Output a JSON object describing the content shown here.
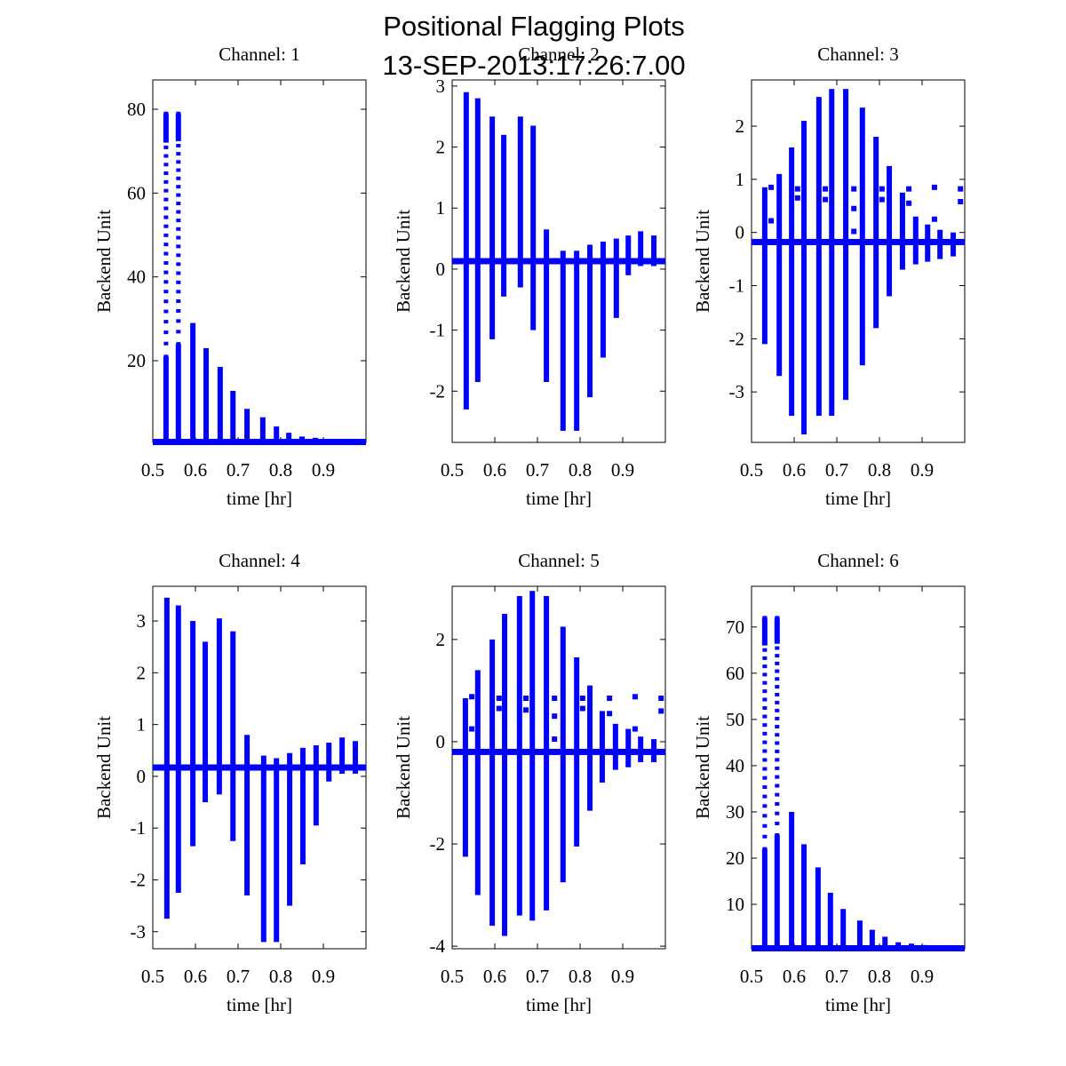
{
  "chart_data": {
    "type": "scatter",
    "title": "Positional Flagging Plots",
    "subtitle": "13-SEP-2013:17:26:7.00",
    "marker_color": "#0000ff",
    "panels": [
      {
        "title": "Channel: 1",
        "xlabel": "time [hr]",
        "ylabel": "Backend Unit",
        "xlim": [
          0.5,
          1.0
        ],
        "ylim": [
          0.5,
          87
        ],
        "xticks": [
          0.5,
          0.6,
          0.7,
          0.8,
          0.9
        ],
        "xtick_labels": [
          "0.5",
          "0.6",
          "0.7",
          "0.8",
          "0.9"
        ],
        "yticks": [
          20,
          40,
          60,
          80
        ],
        "ytick_labels": [
          "20",
          "40",
          "60",
          "80"
        ],
        "baseline": 0.6,
        "columns": [
          {
            "x": 0.531,
            "ymin": 0.6,
            "ymax": 79,
            "sparse_above": 21
          },
          {
            "x": 0.56,
            "ymin": 0.6,
            "ymax": 79,
            "sparse_above": 24
          },
          {
            "x": 0.594,
            "ymin": 0.6,
            "ymax": 29
          },
          {
            "x": 0.625,
            "ymin": 0.6,
            "ymax": 23
          },
          {
            "x": 0.658,
            "ymin": 0.6,
            "ymax": 18.5
          },
          {
            "x": 0.688,
            "ymin": 0.6,
            "ymax": 12.8
          },
          {
            "x": 0.721,
            "ymin": 0.6,
            "ymax": 8.5
          },
          {
            "x": 0.758,
            "ymin": 0.6,
            "ymax": 6.5
          },
          {
            "x": 0.79,
            "ymin": 0.6,
            "ymax": 4.3
          },
          {
            "x": 0.819,
            "ymin": 0.6,
            "ymax": 2.8
          },
          {
            "x": 0.85,
            "ymin": 0.6,
            "ymax": 1.9
          },
          {
            "x": 0.881,
            "ymin": 0.6,
            "ymax": 1.6
          },
          {
            "x": 0.913,
            "ymin": 0.6,
            "ymax": 1.3
          },
          {
            "x": 0.944,
            "ymin": 0.6,
            "ymax": 1.2
          },
          {
            "x": 0.975,
            "ymin": 0.6,
            "ymax": 1.1
          }
        ],
        "outliers": []
      },
      {
        "title": "Channel: 2",
        "xlabel": "time [hr]",
        "ylabel": "Backend Unit",
        "xlim": [
          0.5,
          1.0
        ],
        "ylim": [
          -2.84,
          3.1
        ],
        "xticks": [
          0.5,
          0.6,
          0.7,
          0.8,
          0.9
        ],
        "xtick_labels": [
          "0.5",
          "0.6",
          "0.7",
          "0.8",
          "0.9"
        ],
        "yticks": [
          -2,
          -1,
          0,
          1,
          2,
          3
        ],
        "ytick_labels": [
          "-2",
          "-1",
          "0",
          "1",
          "2",
          "3"
        ],
        "baseline": 0.13,
        "columns": [
          {
            "x": 0.533,
            "ymin": -2.3,
            "ymax": 2.9
          },
          {
            "x": 0.56,
            "ymin": -1.85,
            "ymax": 2.8
          },
          {
            "x": 0.594,
            "ymin": -1.15,
            "ymax": 2.5
          },
          {
            "x": 0.621,
            "ymin": -0.45,
            "ymax": 2.2
          },
          {
            "x": 0.66,
            "ymin": -0.3,
            "ymax": 2.5
          },
          {
            "x": 0.69,
            "ymin": -1.0,
            "ymax": 2.35
          },
          {
            "x": 0.721,
            "ymin": -1.85,
            "ymax": 0.65
          },
          {
            "x": 0.76,
            "ymin": -2.65,
            "ymax": 0.3
          },
          {
            "x": 0.792,
            "ymin": -2.65,
            "ymax": 0.3
          },
          {
            "x": 0.823,
            "ymin": -2.1,
            "ymax": 0.4
          },
          {
            "x": 0.854,
            "ymin": -1.45,
            "ymax": 0.45
          },
          {
            "x": 0.885,
            "ymin": -0.8,
            "ymax": 0.5
          },
          {
            "x": 0.913,
            "ymin": -0.1,
            "ymax": 0.55
          },
          {
            "x": 0.942,
            "ymin": 0.05,
            "ymax": 0.62
          },
          {
            "x": 0.973,
            "ymin": 0.05,
            "ymax": 0.55
          }
        ],
        "outliers": []
      },
      {
        "title": "Channel: 3",
        "xlabel": "time [hr]",
        "ylabel": "Backend Unit",
        "xlim": [
          0.5,
          1.0
        ],
        "ylim": [
          -3.95,
          2.87
        ],
        "xticks": [
          0.5,
          0.6,
          0.7,
          0.8,
          0.9
        ],
        "xtick_labels": [
          "0.5",
          "0.6",
          "0.7",
          "0.8",
          "0.9"
        ],
        "yticks": [
          -3,
          -2,
          -1,
          0,
          1,
          2
        ],
        "ytick_labels": [
          "-3",
          "-2",
          "-1",
          "0",
          "1",
          "2"
        ],
        "baseline": -0.18,
        "columns": [
          {
            "x": 0.531,
            "ymin": -2.1,
            "ymax": 0.85
          },
          {
            "x": 0.565,
            "ymin": -2.7,
            "ymax": 1.1
          },
          {
            "x": 0.594,
            "ymin": -3.45,
            "ymax": 1.6
          },
          {
            "x": 0.623,
            "ymin": -3.8,
            "ymax": 2.1
          },
          {
            "x": 0.658,
            "ymin": -3.45,
            "ymax": 2.55
          },
          {
            "x": 0.688,
            "ymin": -3.45,
            "ymax": 2.7
          },
          {
            "x": 0.721,
            "ymin": -3.15,
            "ymax": 2.7
          },
          {
            "x": 0.76,
            "ymin": -2.5,
            "ymax": 2.35
          },
          {
            "x": 0.792,
            "ymin": -1.8,
            "ymax": 1.8
          },
          {
            "x": 0.823,
            "ymin": -1.2,
            "ymax": 1.25
          },
          {
            "x": 0.854,
            "ymin": -0.7,
            "ymax": 0.75
          },
          {
            "x": 0.885,
            "ymin": -0.6,
            "ymax": 0.3
          },
          {
            "x": 0.913,
            "ymin": -0.55,
            "ymax": 0.15
          },
          {
            "x": 0.942,
            "ymin": -0.5,
            "ymax": 0.05
          },
          {
            "x": 0.973,
            "ymin": -0.45,
            "ymax": 0.0
          }
        ],
        "outliers": [
          {
            "x": 0.546,
            "y": 0.85
          },
          {
            "x": 0.546,
            "y": 0.22
          },
          {
            "x": 0.608,
            "y": 0.82
          },
          {
            "x": 0.608,
            "y": 0.65
          },
          {
            "x": 0.673,
            "y": 0.82
          },
          {
            "x": 0.673,
            "y": 0.62
          },
          {
            "x": 0.74,
            "y": 0.82
          },
          {
            "x": 0.74,
            "y": 0.45
          },
          {
            "x": 0.74,
            "y": 0.02
          },
          {
            "x": 0.806,
            "y": 0.82
          },
          {
            "x": 0.806,
            "y": 0.62
          },
          {
            "x": 0.869,
            "y": 0.82
          },
          {
            "x": 0.869,
            "y": 0.55
          },
          {
            "x": 0.929,
            "y": 0.85
          },
          {
            "x": 0.929,
            "y": 0.25
          },
          {
            "x": 0.99,
            "y": 0.82
          },
          {
            "x": 0.99,
            "y": 0.58
          }
        ]
      },
      {
        "title": "Channel: 4",
        "xlabel": "time [hr]",
        "ylabel": "Backend Unit",
        "xlim": [
          0.5,
          1.0
        ],
        "ylim": [
          -3.33,
          3.67
        ],
        "xticks": [
          0.5,
          0.6,
          0.7,
          0.8,
          0.9
        ],
        "xtick_labels": [
          "0.5",
          "0.6",
          "0.7",
          "0.8",
          "0.9"
        ],
        "yticks": [
          -3,
          -2,
          -1,
          0,
          1,
          2,
          3
        ],
        "ytick_labels": [
          "-3",
          "-2",
          "-1",
          "0",
          "1",
          "2",
          "3"
        ],
        "baseline": 0.17,
        "columns": [
          {
            "x": 0.533,
            "ymin": -2.75,
            "ymax": 3.45
          },
          {
            "x": 0.56,
            "ymin": -2.25,
            "ymax": 3.3
          },
          {
            "x": 0.594,
            "ymin": -1.35,
            "ymax": 3.0
          },
          {
            "x": 0.623,
            "ymin": -0.5,
            "ymax": 2.6
          },
          {
            "x": 0.656,
            "ymin": -0.35,
            "ymax": 3.05
          },
          {
            "x": 0.688,
            "ymin": -1.25,
            "ymax": 2.8
          },
          {
            "x": 0.721,
            "ymin": -2.3,
            "ymax": 0.8
          },
          {
            "x": 0.76,
            "ymin": -3.2,
            "ymax": 0.4
          },
          {
            "x": 0.79,
            "ymin": -3.2,
            "ymax": 0.35
          },
          {
            "x": 0.821,
            "ymin": -2.5,
            "ymax": 0.45
          },
          {
            "x": 0.852,
            "ymin": -1.7,
            "ymax": 0.55
          },
          {
            "x": 0.883,
            "ymin": -0.95,
            "ymax": 0.6
          },
          {
            "x": 0.913,
            "ymin": -0.1,
            "ymax": 0.65
          },
          {
            "x": 0.944,
            "ymin": 0.05,
            "ymax": 0.75
          },
          {
            "x": 0.975,
            "ymin": 0.05,
            "ymax": 0.68
          }
        ],
        "outliers": []
      },
      {
        "title": "Channel: 5",
        "xlabel": "time [hr]",
        "ylabel": "Backend Unit",
        "xlim": [
          0.5,
          1.0
        ],
        "ylim": [
          -4.05,
          3.04
        ],
        "xticks": [
          0.5,
          0.6,
          0.7,
          0.8,
          0.9
        ],
        "xtick_labels": [
          "0.5",
          "0.6",
          "0.7",
          "0.8",
          "0.9"
        ],
        "yticks": [
          -4,
          -2,
          0,
          2
        ],
        "ytick_labels": [
          "-4",
          "-2",
          "0",
          "2"
        ],
        "baseline": -0.2,
        "columns": [
          {
            "x": 0.531,
            "ymin": -2.25,
            "ymax": 0.85
          },
          {
            "x": 0.56,
            "ymin": -3.0,
            "ymax": 1.4
          },
          {
            "x": 0.594,
            "ymin": -3.6,
            "ymax": 2.0
          },
          {
            "x": 0.623,
            "ymin": -3.8,
            "ymax": 2.5
          },
          {
            "x": 0.658,
            "ymin": -3.4,
            "ymax": 2.85
          },
          {
            "x": 0.688,
            "ymin": -3.5,
            "ymax": 2.95
          },
          {
            "x": 0.721,
            "ymin": -3.3,
            "ymax": 2.85
          },
          {
            "x": 0.76,
            "ymin": -2.75,
            "ymax": 2.25
          },
          {
            "x": 0.792,
            "ymin": -2.05,
            "ymax": 1.65
          },
          {
            "x": 0.823,
            "ymin": -1.35,
            "ymax": 1.1
          },
          {
            "x": 0.852,
            "ymin": -0.8,
            "ymax": 0.6
          },
          {
            "x": 0.883,
            "ymin": -0.55,
            "ymax": 0.35
          },
          {
            "x": 0.913,
            "ymin": -0.5,
            "ymax": 0.25
          },
          {
            "x": 0.942,
            "ymin": -0.4,
            "ymax": 0.1
          },
          {
            "x": 0.973,
            "ymin": -0.4,
            "ymax": 0.05
          }
        ],
        "outliers": [
          {
            "x": 0.546,
            "y": 0.88
          },
          {
            "x": 0.546,
            "y": 0.25
          },
          {
            "x": 0.61,
            "y": 0.85
          },
          {
            "x": 0.61,
            "y": 0.65
          },
          {
            "x": 0.673,
            "y": 0.85
          },
          {
            "x": 0.673,
            "y": 0.62
          },
          {
            "x": 0.74,
            "y": 0.85
          },
          {
            "x": 0.74,
            "y": 0.5
          },
          {
            "x": 0.74,
            "y": 0.05
          },
          {
            "x": 0.806,
            "y": 0.85
          },
          {
            "x": 0.806,
            "y": 0.65
          },
          {
            "x": 0.869,
            "y": 0.85
          },
          {
            "x": 0.869,
            "y": 0.55
          },
          {
            "x": 0.929,
            "y": 0.88
          },
          {
            "x": 0.929,
            "y": 0.25
          },
          {
            "x": 0.99,
            "y": 0.85
          },
          {
            "x": 0.99,
            "y": 0.6
          }
        ]
      },
      {
        "title": "Channel: 6",
        "xlabel": "time [hr]",
        "ylabel": "Backend Unit",
        "xlim": [
          0.5,
          1.0
        ],
        "ylim": [
          0.4,
          78.8
        ],
        "xticks": [
          0.5,
          0.6,
          0.7,
          0.8,
          0.9
        ],
        "xtick_labels": [
          "0.5",
          "0.6",
          "0.7",
          "0.8",
          "0.9"
        ],
        "yticks": [
          10,
          20,
          30,
          40,
          50,
          60,
          70
        ],
        "ytick_labels": [
          "10",
          "20",
          "30",
          "40",
          "50",
          "60",
          "70"
        ],
        "baseline": 0.5,
        "columns": [
          {
            "x": 0.531,
            "ymin": 0.5,
            "ymax": 72,
            "sparse_above": 22
          },
          {
            "x": 0.56,
            "ymin": 0.5,
            "ymax": 72,
            "sparse_above": 25
          },
          {
            "x": 0.594,
            "ymin": 0.5,
            "ymax": 30
          },
          {
            "x": 0.623,
            "ymin": 0.5,
            "ymax": 23
          },
          {
            "x": 0.656,
            "ymin": 0.5,
            "ymax": 18
          },
          {
            "x": 0.685,
            "ymin": 0.5,
            "ymax": 12.5
          },
          {
            "x": 0.715,
            "ymin": 0.5,
            "ymax": 9
          },
          {
            "x": 0.754,
            "ymin": 0.5,
            "ymax": 6.5
          },
          {
            "x": 0.783,
            "ymin": 0.5,
            "ymax": 4.5
          },
          {
            "x": 0.813,
            "ymin": 0.5,
            "ymax": 3
          },
          {
            "x": 0.844,
            "ymin": 0.5,
            "ymax": 1.8
          },
          {
            "x": 0.875,
            "ymin": 0.5,
            "ymax": 1.5
          },
          {
            "x": 0.906,
            "ymin": 0.5,
            "ymax": 1.2
          },
          {
            "x": 0.938,
            "ymin": 0.5,
            "ymax": 1.1
          },
          {
            "x": 0.969,
            "ymin": 0.5,
            "ymax": 1.0
          }
        ],
        "outliers": []
      }
    ]
  }
}
